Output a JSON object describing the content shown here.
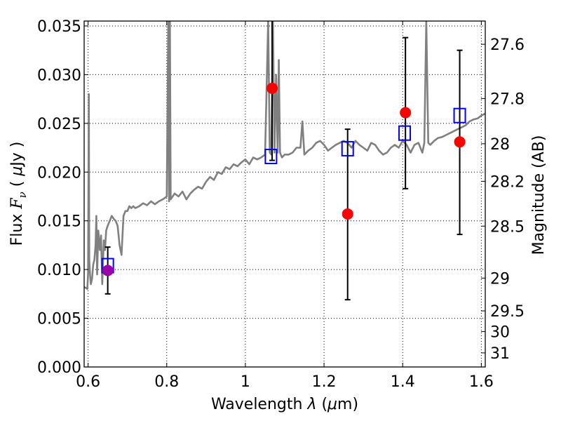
{
  "chart_data": {
    "type": "scatter",
    "xlabel": {
      "prefix": "Wavelength ",
      "symbol": "λ",
      "open": " (",
      "unit_symbol": "μ",
      "unit": "m)"
    },
    "ylabel": {
      "prefix": "Flux ",
      "symbol": "F",
      "subscript": "ν",
      "open": " ( ",
      "unit_symbol": "μ",
      "unit": "Jy )"
    },
    "y2label": "Magnitude (AB)",
    "xlim": [
      0.59,
      1.61
    ],
    "ylim": [
      0.0,
      0.0355
    ],
    "x_ticks": [
      "0.6",
      "0.8",
      "1",
      "1.2",
      "1.4",
      "1.6"
    ],
    "x_tick_values": [
      0.6,
      0.8,
      1.0,
      1.2,
      1.4,
      1.6
    ],
    "y_ticks": [
      "0.000",
      "0.005",
      "0.010",
      "0.015",
      "0.020",
      "0.025",
      "0.030",
      "0.035"
    ],
    "y_tick_values": [
      0.0,
      0.005,
      0.01,
      0.015,
      0.02,
      0.025,
      0.03,
      0.035
    ],
    "y2_ticks": [
      "27.6",
      "27.8",
      "28",
      "28.2",
      "28.5",
      "29",
      "29.5",
      "30",
      "31"
    ],
    "y2_tick_values": [
      27.6,
      27.8,
      28.0,
      28.2,
      28.5,
      29.0,
      29.5,
      30.0,
      31.0
    ],
    "grid": true,
    "model_spectrum": {
      "color": "#808080",
      "x": [
        0.59,
        0.595,
        0.598,
        0.6,
        0.602,
        0.603,
        0.605,
        0.607,
        0.61,
        0.613,
        0.616,
        0.619,
        0.621,
        0.623,
        0.626,
        0.63,
        0.633,
        0.636,
        0.64,
        0.643,
        0.646,
        0.65,
        0.655,
        0.66,
        0.665,
        0.67,
        0.675,
        0.68,
        0.685,
        0.69,
        0.695,
        0.7,
        0.705,
        0.71,
        0.715,
        0.72,
        0.73,
        0.74,
        0.75,
        0.76,
        0.77,
        0.78,
        0.79,
        0.8,
        0.804,
        0.806,
        0.808,
        0.81,
        0.815,
        0.82,
        0.83,
        0.84,
        0.85,
        0.86,
        0.87,
        0.88,
        0.89,
        0.9,
        0.91,
        0.92,
        0.93,
        0.94,
        0.95,
        0.96,
        0.97,
        0.98,
        0.99,
        1.0,
        1.01,
        1.02,
        1.03,
        1.04,
        1.05,
        1.058,
        1.062,
        1.066,
        1.07,
        1.074,
        1.078,
        1.082,
        1.085,
        1.088,
        1.093,
        1.1,
        1.11,
        1.12,
        1.13,
        1.14,
        1.145,
        1.15,
        1.16,
        1.17,
        1.18,
        1.19,
        1.2,
        1.21,
        1.22,
        1.23,
        1.24,
        1.25,
        1.26,
        1.27,
        1.28,
        1.29,
        1.3,
        1.31,
        1.32,
        1.33,
        1.34,
        1.35,
        1.36,
        1.37,
        1.38,
        1.39,
        1.4,
        1.41,
        1.42,
        1.43,
        1.44,
        1.45,
        1.455,
        1.46,
        1.465,
        1.47,
        1.48,
        1.49,
        1.5,
        1.51,
        1.52,
        1.53,
        1.54,
        1.55,
        1.56,
        1.57,
        1.58,
        1.59,
        1.6,
        1.61
      ],
      "y": [
        0.0082,
        0.0081,
        0.008,
        0.0095,
        0.028,
        0.011,
        0.0095,
        0.0085,
        0.009,
        0.0105,
        0.011,
        0.0125,
        0.0155,
        0.0095,
        0.014,
        0.012,
        0.0135,
        0.0085,
        0.013,
        0.012,
        0.014,
        0.0145,
        0.015,
        0.0155,
        0.0152,
        0.015,
        0.0145,
        0.0125,
        0.0115,
        0.0155,
        0.016,
        0.016,
        0.0165,
        0.0163,
        0.0165,
        0.0163,
        0.0165,
        0.0168,
        0.0166,
        0.017,
        0.0167,
        0.017,
        0.0172,
        0.0175,
        0.04,
        0.017,
        0.04,
        0.0172,
        0.0175,
        0.0178,
        0.0175,
        0.018,
        0.0172,
        0.0178,
        0.0182,
        0.0185,
        0.0183,
        0.019,
        0.0195,
        0.0192,
        0.02,
        0.0198,
        0.0205,
        0.0203,
        0.0208,
        0.0206,
        0.021,
        0.0213,
        0.0208,
        0.0215,
        0.0213,
        0.0215,
        0.0218,
        0.04,
        0.022,
        0.0218,
        0.04,
        0.022,
        0.03,
        0.022,
        0.0315,
        0.022,
        0.0215,
        0.0218,
        0.0218,
        0.022,
        0.0225,
        0.0225,
        0.0252,
        0.0218,
        0.0222,
        0.0225,
        0.023,
        0.0232,
        0.0228,
        0.0222,
        0.0225,
        0.0228,
        0.023,
        0.0232,
        0.023,
        0.0225,
        0.0232,
        0.0228,
        0.0225,
        0.0222,
        0.023,
        0.0228,
        0.0222,
        0.0218,
        0.022,
        0.0225,
        0.0228,
        0.0225,
        0.0232,
        0.0228,
        0.022,
        0.0228,
        0.023,
        0.022,
        0.023,
        0.04,
        0.023,
        0.0228,
        0.0232,
        0.0235,
        0.0236,
        0.0238,
        0.024,
        0.0242,
        0.0244,
        0.0246,
        0.0248,
        0.0252,
        0.0254,
        0.0255,
        0.0258,
        0.026
      ]
    },
    "series": [
      {
        "marker": "open-square",
        "color": "#0000ff",
        "x": [
          0.65,
          1.065,
          1.26,
          1.405,
          1.545
        ],
        "y": [
          0.0104,
          0.0216,
          0.0224,
          0.024,
          0.0258
        ]
      },
      {
        "marker": "filled-circle",
        "color": "#ff0000",
        "x": [
          0.65,
          1.068,
          1.26,
          1.407,
          1.545
        ],
        "y": [
          0.0099,
          0.0286,
          0.0157,
          0.0261,
          0.0231
        ],
        "point_colors": [
          "#9900aa",
          "#ff0000",
          "#ff0000",
          "#ff0000",
          "#ff0000"
        ],
        "err_low": [
          0.0075,
          0.0212,
          0.0069,
          0.0183,
          0.0136
        ],
        "err_high": [
          0.0123,
          0.04,
          0.0244,
          0.0338,
          0.0325
        ]
      }
    ]
  }
}
